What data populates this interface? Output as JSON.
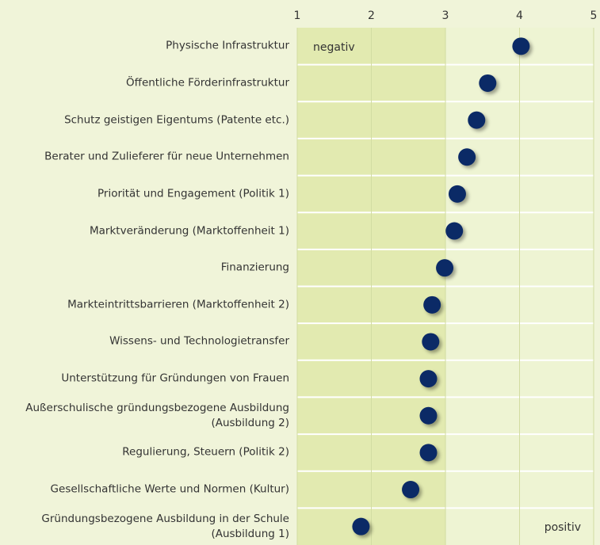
{
  "chart_data": {
    "type": "dot",
    "categories": [
      "Physische Infrastruktur",
      "Öffentliche Förderinfrastruktur",
      "Schutz geistigen Eigentums (Patente etc.)",
      "Berater und Zulieferer für neue Unternehmen",
      "Priorität und Engagement (Politik 1)",
      "Marktveränderung (Marktoffenheit 1)",
      "Finanzierung",
      "Markteintrittsbarrieren (Marktoffenheit 2)",
      "Wissens- und Technologietransfer",
      "Unterstützung für Gründungen von Frauen",
      "Außerschulische gründungsbezogene Ausbildung\n(Ausbildung 2)",
      "Regulierung, Steuern (Politik 2)",
      "Gesellschaftliche Werte und Normen (Kultur)",
      "Gründungsbezogene Ausbildung in der Schule\n(Ausbildung 1)"
    ],
    "values": [
      4.02,
      3.57,
      3.42,
      3.29,
      3.16,
      3.12,
      2.99,
      2.82,
      2.8,
      2.77,
      2.77,
      2.77,
      2.53,
      1.86
    ],
    "color": "#0b2a66",
    "xlim": [
      1,
      5
    ],
    "xticks": [
      1,
      2,
      3,
      4,
      5
    ],
    "grid": true,
    "annotations": [
      "negativ",
      "positiv"
    ]
  }
}
